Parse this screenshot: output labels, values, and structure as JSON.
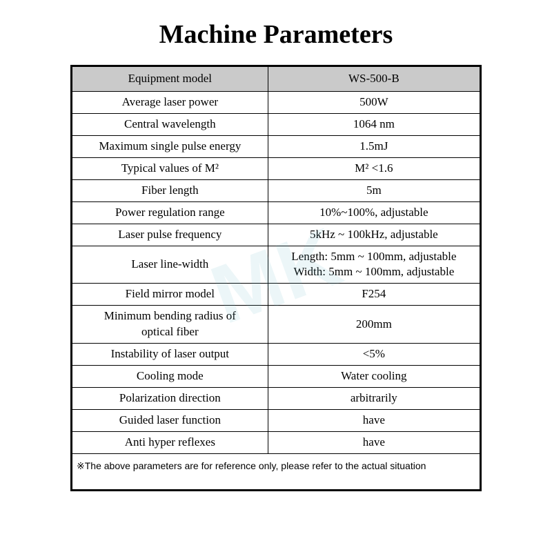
{
  "title": "Machine Parameters",
  "watermark_text": "MK",
  "table": {
    "header": {
      "label": "Equipment model",
      "value": "WS-500-B"
    },
    "rows": [
      {
        "label": "Average laser power",
        "value": "500W"
      },
      {
        "label": "Central wavelength",
        "value": "1064 nm"
      },
      {
        "label": "Maximum single pulse energy",
        "value": "1.5mJ"
      },
      {
        "label": "Typical values of M²",
        "value": "M² <1.6"
      },
      {
        "label": "Fiber length",
        "value": "5m"
      },
      {
        "label": "Power regulation range",
        "value": "10%~100%, adjustable"
      },
      {
        "label": "Laser pulse frequency",
        "value": "5kHz ~ 100kHz, adjustable"
      },
      {
        "label": "Laser line-width",
        "value_line1": "Length: 5mm ~ 100mm, adjustable",
        "value_line2": "Width: 5mm ~ 100mm, adjustable",
        "multi": true
      },
      {
        "label": "Field mirror model",
        "value": "F254"
      },
      {
        "label_line1": "Minimum bending radius of",
        "label_line2": "optical fiber",
        "value": "200mm",
        "multi_label": true
      },
      {
        "label": "Instability of laser output",
        "value": "<5%"
      },
      {
        "label": "Cooling mode",
        "value": "Water cooling"
      },
      {
        "label": "Polarization direction",
        "value": "arbitrarily"
      },
      {
        "label": "Guided laser function",
        "value": "have"
      },
      {
        "label": "Anti hyper reflexes",
        "value": "have"
      }
    ],
    "footer": "※The above parameters are for reference only, please refer to the actual situation"
  },
  "colors": {
    "header_bg": "#cacaca",
    "border": "#000000",
    "text": "#000000",
    "background": "#ffffff",
    "watermark": "rgba(100,180,200,0.12)"
  }
}
